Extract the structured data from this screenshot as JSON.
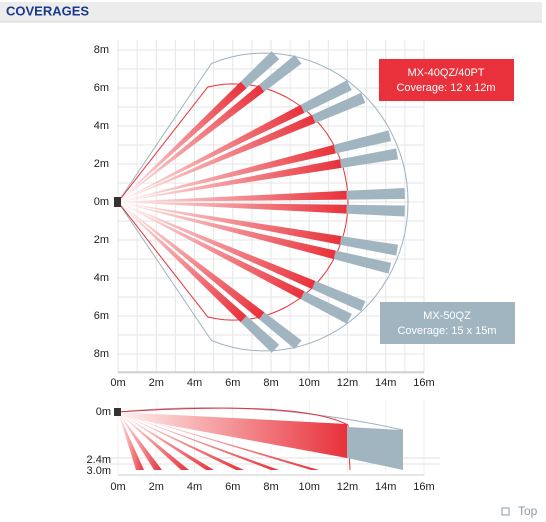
{
  "header": {
    "title": "COVERAGES"
  },
  "top_view": {
    "y_labels": [
      "8m",
      "6m",
      "4m",
      "2m",
      "0m",
      "2m",
      "4m",
      "6m",
      "8m"
    ],
    "x_labels": [
      "0m",
      "2m",
      "4m",
      "6m",
      "8m",
      "10m",
      "12m",
      "14m",
      "16m"
    ],
    "legend": [
      {
        "model": "MX-40QZ/40PT",
        "coverage": "Coverage: 12 x 12m"
      },
      {
        "model": "MX-50QZ",
        "coverage": "Coverage: 15 x 15m"
      }
    ]
  },
  "side_view": {
    "y_labels": [
      "0m",
      "2.4m",
      "3.0m"
    ],
    "x_labels": [
      "0m",
      "2m",
      "4m",
      "6m",
      "8m",
      "10m",
      "12m",
      "14m",
      "16m"
    ]
  },
  "footer": {
    "link": "Top"
  }
}
